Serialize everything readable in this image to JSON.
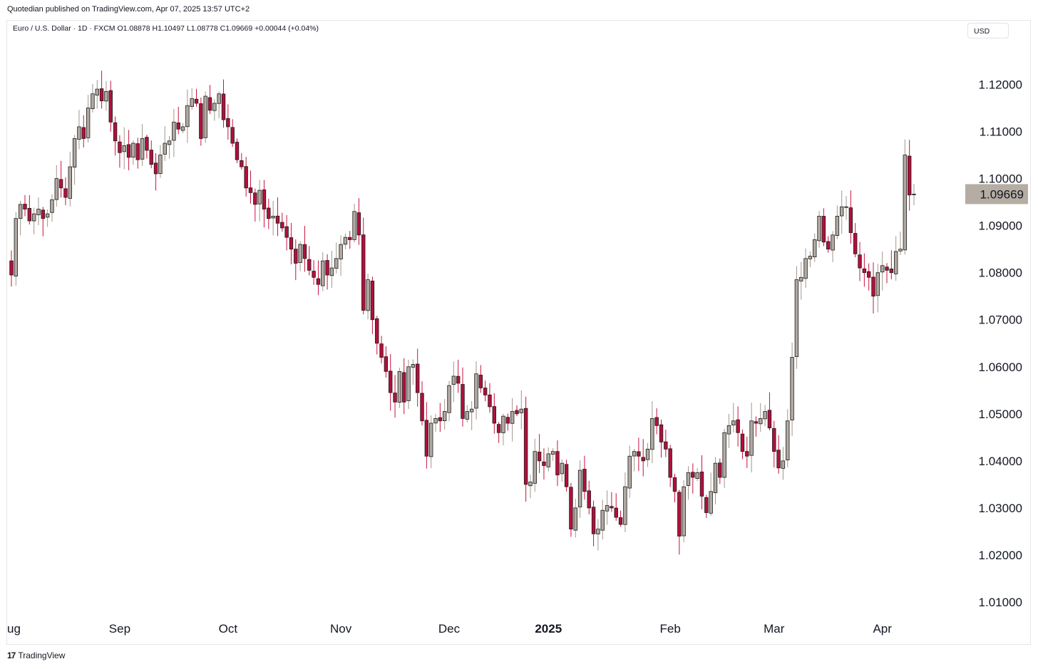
{
  "publisher_line": "Quotedian published on TradingView.com, Apr 07, 2025 13:57 UTC+2",
  "symbol_line": "Euro / U.S. Dollar · 1D · FXCM  O1.08878  H1.10497  L1.08778  C1.09669  +0.00044 (+0.04%)",
  "currency_button": "USD",
  "footer_brand": "TradingView",
  "footer_mark": "17",
  "colors": {
    "up_body": "#b2aaa2",
    "down_body": "#b2103c",
    "wick_up": "#a0968c",
    "wick_down": "#c8123f",
    "outline": "#1c1c1c",
    "price_tag": "#b5aca3"
  },
  "chart_data": {
    "type": "candlestick",
    "title": "Euro / U.S. Dollar · 1D · FXCM",
    "ylim": [
      1.0035,
      1.1255
    ],
    "yticks": [
      "1.12000",
      "1.11000",
      "1.10000",
      "1.09000",
      "1.08000",
      "1.07000",
      "1.06000",
      "1.05000",
      "1.04000",
      "1.03000",
      "1.02000",
      "1.01000"
    ],
    "ytick_values": [
      1.12,
      1.11,
      1.1,
      1.09,
      1.08,
      1.07,
      1.06,
      1.05,
      1.04,
      1.03,
      1.02,
      1.01
    ],
    "xticks": [
      {
        "label": "ug",
        "index": 0,
        "bold": false
      },
      {
        "label": "Sep",
        "index": 24,
        "bold": false
      },
      {
        "label": "Oct",
        "index": 48,
        "bold": false
      },
      {
        "label": "Nov",
        "index": 73,
        "bold": false
      },
      {
        "label": "Dec",
        "index": 97,
        "bold": false
      },
      {
        "label": "2025",
        "index": 119,
        "bold": true
      },
      {
        "label": "Feb",
        "index": 146,
        "bold": false
      },
      {
        "label": "Mar",
        "index": 169,
        "bold": false
      },
      {
        "label": "Apr",
        "index": 193,
        "bold": false
      }
    ],
    "last_price": {
      "value": 1.09669,
      "label": "1.09669"
    },
    "closes": [
      1.0795,
      1.0915,
      1.0945,
      1.0935,
      1.091,
      1.0925,
      1.0935,
      1.0915,
      1.0925,
      1.0955,
      1.1,
      1.098,
      1.096,
      1.1025,
      1.1085,
      1.111,
      1.1085,
      1.115,
      1.118,
      1.119,
      1.1165,
      1.1185,
      1.112,
      1.108,
      1.1055,
      1.107,
      1.1045,
      1.1075,
      1.104,
      1.1085,
      1.106,
      1.103,
      1.101,
      1.105,
      1.1075,
      1.108,
      1.112,
      1.1105,
      1.111,
      1.1155,
      1.117,
      1.116,
      1.1085,
      1.1175,
      1.1145,
      1.116,
      1.118,
      1.1125,
      1.111,
      1.1075,
      1.104,
      1.1025,
      1.098,
      1.097,
      1.0945,
      1.0975,
      1.0935,
      1.0915,
      1.092,
      1.0905,
      1.0895,
      1.0875,
      1.085,
      1.082,
      1.086,
      1.083,
      1.0805,
      1.079,
      1.0775,
      1.0825,
      1.0795,
      1.081,
      1.083,
      1.086,
      1.0875,
      1.087,
      1.093,
      1.088,
      1.072,
      1.0785,
      1.07,
      1.065,
      1.062,
      1.059,
      1.0545,
      1.0525,
      1.059,
      1.0525,
      1.06,
      1.0605,
      1.0545,
      1.0485,
      1.041,
      1.048,
      1.049,
      1.0485,
      1.0505,
      1.056,
      1.058,
      1.0565,
      1.049,
      1.0505,
      1.051,
      1.0585,
      1.0555,
      1.054,
      1.0515,
      1.048,
      1.046,
      1.0495,
      1.048,
      1.0505,
      1.05,
      1.051,
      1.035,
      1.0355,
      1.042,
      1.04,
      1.039,
      1.0415,
      1.042,
      1.037,
      1.0395,
      1.0345,
      1.0255,
      1.03,
      1.038,
      1.0335,
      1.03,
      1.0245,
      1.0255,
      1.0295,
      1.0305,
      1.03,
      1.028,
      1.0265,
      1.0345,
      1.041,
      1.042,
      1.041,
      1.04,
      1.0425,
      1.049,
      1.0475,
      1.044,
      1.0425,
      1.0365,
      1.0335,
      1.024,
      1.0345,
      1.0375,
      1.0365,
      1.0375,
      1.0325,
      1.029,
      1.0335,
      1.0395,
      1.0365,
      1.046,
      1.0475,
      1.0485,
      1.046,
      1.042,
      1.041,
      1.0485,
      1.048,
      1.049,
      1.0505,
      1.047,
      1.042,
      1.0385,
      1.04,
      1.0485,
      1.062,
      1.0785,
      1.079,
      1.083,
      1.0835,
      1.087,
      1.092,
      1.0865,
      1.085,
      1.088,
      1.092,
      1.094,
      1.094,
      1.0885,
      1.084,
      1.081,
      1.08,
      1.079,
      1.075,
      1.08,
      1.0815,
      1.0805,
      1.08,
      1.0845,
      1.085,
      1.105,
      1.0965,
      1.0967
    ]
  }
}
